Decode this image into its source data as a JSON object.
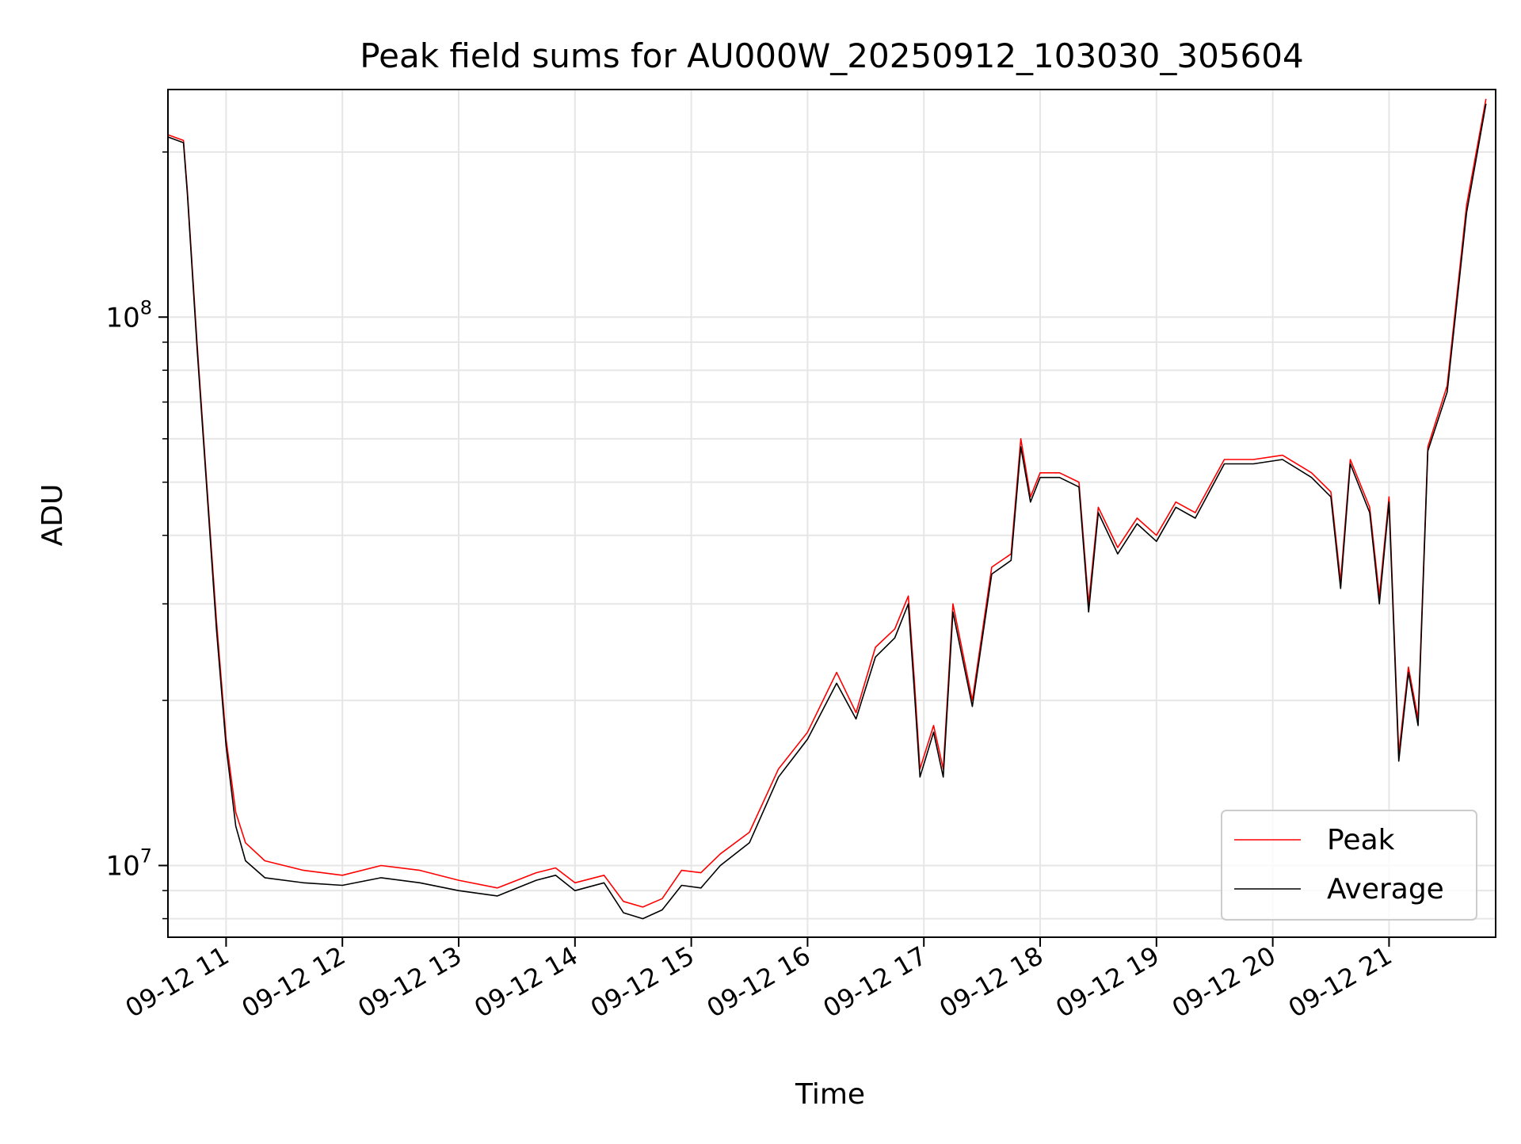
{
  "chart_data": {
    "type": "line",
    "title": "Peak field sums for AU000W_20250912_103030_305604",
    "xlabel": "Time",
    "ylabel": "ADU",
    "y_scale": "log",
    "ylim": [
      7400000,
      260000000
    ],
    "xlim": [
      "2025-09-12 10:30",
      "2025-09-12 21:55"
    ],
    "grid": true,
    "legend_position": "lower-right",
    "x_ticks": [
      {
        "t": "2025-09-12 11:00",
        "label": "09-12 11"
      },
      {
        "t": "2025-09-12 12:00",
        "label": "09-12 12"
      },
      {
        "t": "2025-09-12 13:00",
        "label": "09-12 13"
      },
      {
        "t": "2025-09-12 14:00",
        "label": "09-12 14"
      },
      {
        "t": "2025-09-12 15:00",
        "label": "09-12 15"
      },
      {
        "t": "2025-09-12 16:00",
        "label": "09-12 16"
      },
      {
        "t": "2025-09-12 17:00",
        "label": "09-12 17"
      },
      {
        "t": "2025-09-12 18:00",
        "label": "09-12 18"
      },
      {
        "t": "2025-09-12 19:00",
        "label": "09-12 19"
      },
      {
        "t": "2025-09-12 20:00",
        "label": "09-12 20"
      },
      {
        "t": "2025-09-12 21:00",
        "label": "09-12 21"
      }
    ],
    "y_ticks": [
      {
        "value": 10000000,
        "base": "10",
        "exp": "7"
      },
      {
        "value": 100000000,
        "base": "10",
        "exp": "8"
      }
    ],
    "series": [
      {
        "name": "Peak",
        "color": "#ff0000",
        "points": [
          [
            "2025-09-12 10:30",
            215000000
          ],
          [
            "2025-09-12 10:38",
            210000000
          ],
          [
            "2025-09-12 10:40",
            170000000
          ],
          [
            "2025-09-12 10:45",
            90000000
          ],
          [
            "2025-09-12 10:50",
            50000000
          ],
          [
            "2025-09-12 10:55",
            28000000
          ],
          [
            "2025-09-12 11:00",
            17000000
          ],
          [
            "2025-09-12 11:05",
            12500000
          ],
          [
            "2025-09-12 11:10",
            11000000
          ],
          [
            "2025-09-12 11:20",
            10200000
          ],
          [
            "2025-09-12 11:40",
            9800000
          ],
          [
            "2025-09-12 12:00",
            9600000
          ],
          [
            "2025-09-12 12:20",
            10000000
          ],
          [
            "2025-09-12 12:40",
            9800000
          ],
          [
            "2025-09-12 13:00",
            9400000
          ],
          [
            "2025-09-12 13:20",
            9100000
          ],
          [
            "2025-09-12 13:40",
            9700000
          ],
          [
            "2025-09-12 13:50",
            9900000
          ],
          [
            "2025-09-12 14:00",
            9300000
          ],
          [
            "2025-09-12 14:15",
            9600000
          ],
          [
            "2025-09-12 14:25",
            8600000
          ],
          [
            "2025-09-12 14:35",
            8400000
          ],
          [
            "2025-09-12 14:45",
            8700000
          ],
          [
            "2025-09-12 14:55",
            9800000
          ],
          [
            "2025-09-12 15:05",
            9700000
          ],
          [
            "2025-09-12 15:15",
            10500000
          ],
          [
            "2025-09-12 15:30",
            11500000
          ],
          [
            "2025-09-12 15:45",
            15000000
          ],
          [
            "2025-09-12 16:00",
            17500000
          ],
          [
            "2025-09-12 16:15",
            22500000
          ],
          [
            "2025-09-12 16:25",
            19000000
          ],
          [
            "2025-09-12 16:35",
            25000000
          ],
          [
            "2025-09-12 16:45",
            27000000
          ],
          [
            "2025-09-12 16:52",
            31000000
          ],
          [
            "2025-09-12 16:55",
            22000000
          ],
          [
            "2025-09-12 16:58",
            15000000
          ],
          [
            "2025-09-12 17:05",
            18000000
          ],
          [
            "2025-09-12 17:10",
            15000000
          ],
          [
            "2025-09-12 17:15",
            30000000
          ],
          [
            "2025-09-12 17:25",
            20000000
          ],
          [
            "2025-09-12 17:35",
            35000000
          ],
          [
            "2025-09-12 17:45",
            37000000
          ],
          [
            "2025-09-12 17:50",
            60000000
          ],
          [
            "2025-09-12 17:55",
            47000000
          ],
          [
            "2025-09-12 18:00",
            52000000
          ],
          [
            "2025-09-12 18:10",
            52000000
          ],
          [
            "2025-09-12 18:20",
            50000000
          ],
          [
            "2025-09-12 18:25",
            30000000
          ],
          [
            "2025-09-12 18:30",
            45000000
          ],
          [
            "2025-09-12 18:40",
            38000000
          ],
          [
            "2025-09-12 18:50",
            43000000
          ],
          [
            "2025-09-12 19:00",
            40000000
          ],
          [
            "2025-09-12 19:10",
            46000000
          ],
          [
            "2025-09-12 19:20",
            44000000
          ],
          [
            "2025-09-12 19:35",
            55000000
          ],
          [
            "2025-09-12 19:50",
            55000000
          ],
          [
            "2025-09-12 20:05",
            56000000
          ],
          [
            "2025-09-12 20:20",
            52000000
          ],
          [
            "2025-09-12 20:30",
            48000000
          ],
          [
            "2025-09-12 20:35",
            33000000
          ],
          [
            "2025-09-12 20:40",
            55000000
          ],
          [
            "2025-09-12 20:50",
            45000000
          ],
          [
            "2025-09-12 20:55",
            31000000
          ],
          [
            "2025-09-12 21:00",
            47000000
          ],
          [
            "2025-09-12 21:05",
            16000000
          ],
          [
            "2025-09-12 21:10",
            23000000
          ],
          [
            "2025-09-12 21:15",
            18500000
          ],
          [
            "2025-09-12 21:20",
            58000000
          ],
          [
            "2025-09-12 21:30",
            75000000
          ],
          [
            "2025-09-12 21:40",
            160000000
          ],
          [
            "2025-09-12 21:50",
            250000000
          ]
        ]
      },
      {
        "name": "Average",
        "color": "#000000",
        "points": [
          [
            "2025-09-12 10:30",
            213000000
          ],
          [
            "2025-09-12 10:38",
            208000000
          ],
          [
            "2025-09-12 10:40",
            168000000
          ],
          [
            "2025-09-12 10:45",
            88000000
          ],
          [
            "2025-09-12 10:50",
            49000000
          ],
          [
            "2025-09-12 10:55",
            27000000
          ],
          [
            "2025-09-12 11:00",
            16500000
          ],
          [
            "2025-09-12 11:05",
            11800000
          ],
          [
            "2025-09-12 11:10",
            10200000
          ],
          [
            "2025-09-12 11:20",
            9500000
          ],
          [
            "2025-09-12 11:40",
            9300000
          ],
          [
            "2025-09-12 12:00",
            9200000
          ],
          [
            "2025-09-12 12:20",
            9500000
          ],
          [
            "2025-09-12 12:40",
            9300000
          ],
          [
            "2025-09-12 13:00",
            9000000
          ],
          [
            "2025-09-12 13:20",
            8800000
          ],
          [
            "2025-09-12 13:40",
            9400000
          ],
          [
            "2025-09-12 13:50",
            9600000
          ],
          [
            "2025-09-12 14:00",
            9000000
          ],
          [
            "2025-09-12 14:15",
            9300000
          ],
          [
            "2025-09-12 14:25",
            8200000
          ],
          [
            "2025-09-12 14:35",
            8000000
          ],
          [
            "2025-09-12 14:45",
            8300000
          ],
          [
            "2025-09-12 14:55",
            9200000
          ],
          [
            "2025-09-12 15:05",
            9100000
          ],
          [
            "2025-09-12 15:15",
            10000000
          ],
          [
            "2025-09-12 15:30",
            11000000
          ],
          [
            "2025-09-12 15:45",
            14500000
          ],
          [
            "2025-09-12 16:00",
            17000000
          ],
          [
            "2025-09-12 16:15",
            21500000
          ],
          [
            "2025-09-12 16:25",
            18500000
          ],
          [
            "2025-09-12 16:35",
            24000000
          ],
          [
            "2025-09-12 16:45",
            26000000
          ],
          [
            "2025-09-12 16:52",
            30000000
          ],
          [
            "2025-09-12 16:55",
            21000000
          ],
          [
            "2025-09-12 16:58",
            14500000
          ],
          [
            "2025-09-12 17:05",
            17500000
          ],
          [
            "2025-09-12 17:10",
            14500000
          ],
          [
            "2025-09-12 17:15",
            29000000
          ],
          [
            "2025-09-12 17:25",
            19500000
          ],
          [
            "2025-09-12 17:35",
            34000000
          ],
          [
            "2025-09-12 17:45",
            36000000
          ],
          [
            "2025-09-12 17:50",
            58000000
          ],
          [
            "2025-09-12 17:55",
            46000000
          ],
          [
            "2025-09-12 18:00",
            51000000
          ],
          [
            "2025-09-12 18:10",
            51000000
          ],
          [
            "2025-09-12 18:20",
            49000000
          ],
          [
            "2025-09-12 18:25",
            29000000
          ],
          [
            "2025-09-12 18:30",
            44000000
          ],
          [
            "2025-09-12 18:40",
            37000000
          ],
          [
            "2025-09-12 18:50",
            42000000
          ],
          [
            "2025-09-12 19:00",
            39000000
          ],
          [
            "2025-09-12 19:10",
            45000000
          ],
          [
            "2025-09-12 19:20",
            43000000
          ],
          [
            "2025-09-12 19:35",
            54000000
          ],
          [
            "2025-09-12 19:50",
            54000000
          ],
          [
            "2025-09-12 20:05",
            55000000
          ],
          [
            "2025-09-12 20:20",
            51000000
          ],
          [
            "2025-09-12 20:30",
            47000000
          ],
          [
            "2025-09-12 20:35",
            32000000
          ],
          [
            "2025-09-12 20:40",
            54000000
          ],
          [
            "2025-09-12 20:50",
            44000000
          ],
          [
            "2025-09-12 20:55",
            30000000
          ],
          [
            "2025-09-12 21:00",
            46000000
          ],
          [
            "2025-09-12 21:05",
            15500000
          ],
          [
            "2025-09-12 21:10",
            22500000
          ],
          [
            "2025-09-12 21:15",
            18000000
          ],
          [
            "2025-09-12 21:20",
            57000000
          ],
          [
            "2025-09-12 21:30",
            73000000
          ],
          [
            "2025-09-12 21:40",
            155000000
          ],
          [
            "2025-09-12 21:50",
            245000000
          ]
        ]
      }
    ]
  }
}
